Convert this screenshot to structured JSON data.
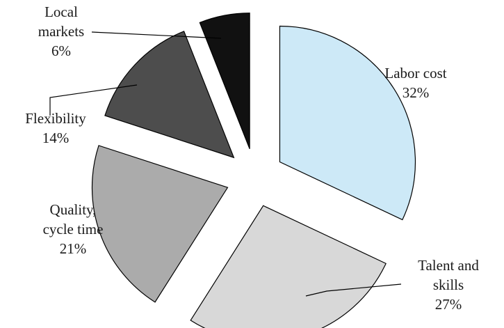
{
  "chart_data": {
    "type": "pie",
    "exploded": true,
    "start_angle_deg": 0,
    "direction": "clockwise",
    "slices": [
      {
        "label_lines": [
          "Labor cost"
        ],
        "value_label": "32%",
        "value": 32,
        "color": "#cde9f7"
      },
      {
        "label_lines": [
          "Talent and",
          "skills"
        ],
        "value_label": "27%",
        "value": 27,
        "color": "#d8d8d8"
      },
      {
        "label_lines": [
          "Quality,",
          "cycle time"
        ],
        "value_label": "21%",
        "value": 21,
        "color": "#ababab"
      },
      {
        "label_lines": [
          "Flexibility"
        ],
        "value_label": "14%",
        "value": 14,
        "color": "#4d4d4d"
      },
      {
        "label_lines": [
          "Local",
          "markets"
        ],
        "value_label": "6%",
        "value": 6,
        "color": "#111111"
      }
    ]
  }
}
